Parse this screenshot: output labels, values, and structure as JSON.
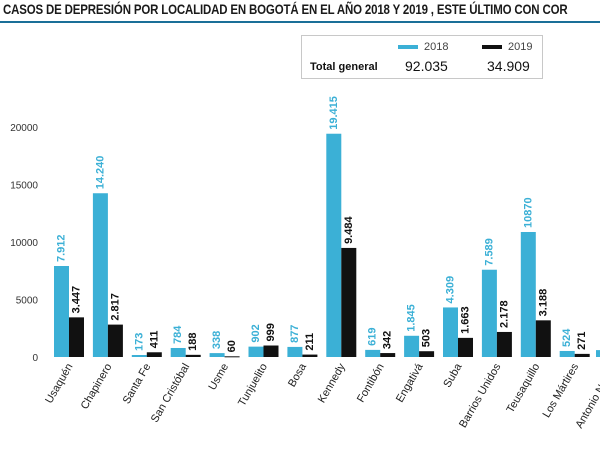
{
  "chart_data": {
    "type": "bar",
    "title": "CASOS DE DEPRESIÓN POR LOCALIDAD EN BOGOTÁ  EN EL AÑO  2018 Y 2019 , ESTE ÚLTIMO  CON COR",
    "xlabel": "",
    "ylabel": "",
    "ylim": [
      0,
      20000
    ],
    "yticks": [
      0,
      5000,
      10000,
      15000,
      20000
    ],
    "grid": false,
    "legend_position": "top-right",
    "categories": [
      "Usaquén",
      "Chapinero",
      "Santa Fe",
      "San Cristóbal",
      "Usme",
      "Tunjuelito",
      "Bosa",
      "Kennedy",
      "Fontibón",
      "Engativá",
      "Suba",
      "Barrios Unidos",
      "Teusaquillo",
      "Los Mártires",
      "Antonio Nariño"
    ],
    "series": [
      {
        "name": "2018",
        "color": "#3bb0d6",
        "values": [
          7912,
          14240,
          173,
          784,
          338,
          902,
          877,
          19415,
          619,
          1845,
          4309,
          7589,
          10870,
          524,
          null
        ],
        "labels": [
          "7.912",
          "14.240",
          "173",
          "784",
          "338",
          "902",
          "877",
          "19.415",
          "619",
          "1.845",
          "4.309",
          "7.589",
          "10870",
          "524",
          ""
        ]
      },
      {
        "name": "2019",
        "color": "#111111",
        "values": [
          3447,
          2817,
          411,
          188,
          60,
          999,
          211,
          9484,
          342,
          503,
          1663,
          2178,
          3188,
          271,
          null
        ],
        "labels": [
          "3.447",
          "2.817",
          "411",
          "188",
          "60",
          "999",
          "211",
          "9.484",
          "342",
          "503",
          "1.663",
          "2.178",
          "3.188",
          "271",
          ""
        ]
      }
    ],
    "totals": {
      "label": "Total general",
      "values": [
        "92.035",
        "34.909"
      ]
    }
  }
}
